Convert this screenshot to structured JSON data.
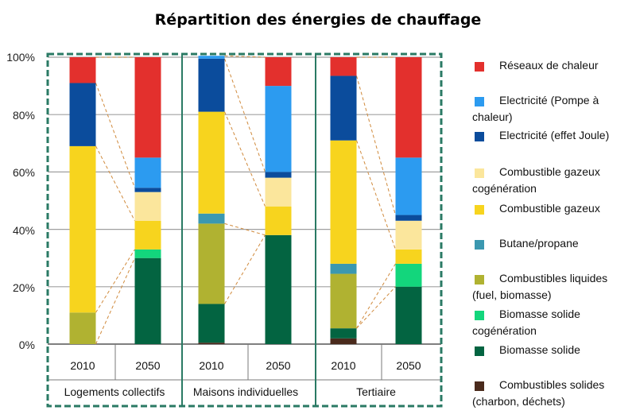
{
  "chart_data": {
    "type": "bar",
    "stacked": true,
    "title": "Répartition des énergies de chauffage",
    "xlabel": "",
    "ylabel": "",
    "ylim": [
      0,
      100
    ],
    "yticks": [
      "0%",
      "20%",
      "40%",
      "60%",
      "80%",
      "100%"
    ],
    "ytick_values": [
      0,
      20,
      40,
      60,
      80,
      100
    ],
    "groups": [
      {
        "name": "Logements collectifs",
        "categories": [
          "2010",
          "2050"
        ]
      },
      {
        "name": "Maisons individuelles",
        "categories": [
          "2010",
          "2050"
        ]
      },
      {
        "name": "Tertiaire",
        "categories": [
          "2010",
          "2050"
        ]
      }
    ],
    "categories": [
      "2010",
      "2050",
      "2010",
      "2050",
      "2010",
      "2050"
    ],
    "series": [
      {
        "name": "Combustibles solides (charbon, déchets)",
        "color": "#4a2a1c",
        "values": [
          0,
          0,
          0.5,
          0,
          2,
          0
        ]
      },
      {
        "name": "Biomasse solide",
        "color": "#036441",
        "values": [
          0,
          30,
          13.5,
          38,
          3.5,
          20
        ]
      },
      {
        "name": "Biomasse solide cogénération",
        "color": "#13d67c",
        "values": [
          0,
          3,
          0,
          0,
          0,
          8
        ]
      },
      {
        "name": "Combustibles liquides (fuel, biomasse)",
        "color": "#b0b231",
        "values": [
          11,
          0,
          28,
          0,
          19,
          0
        ]
      },
      {
        "name": "Butane/propane",
        "color": "#3b98b0",
        "values": [
          0,
          0,
          3.5,
          0,
          3.5,
          0
        ]
      },
      {
        "name": "Combustible gazeux",
        "color": "#f7d41e",
        "values": [
          58,
          10,
          35.5,
          10,
          43,
          5
        ]
      },
      {
        "name": "Combustible gazeux cogénération",
        "color": "#fbe69c",
        "values": [
          0,
          10,
          0,
          10,
          0,
          10
        ]
      },
      {
        "name": "Electricité (effet Joule)",
        "color": "#0b4c9c",
        "values": [
          22,
          1.5,
          18.5,
          2,
          22.5,
          2
        ]
      },
      {
        "name": "Electricité (Pompe à chaleur)",
        "color": "#2c9bf0",
        "values": [
          0,
          10.5,
          1,
          30,
          0,
          20
        ]
      },
      {
        "name": "Réseaux de chaleur",
        "color": "#e3302d",
        "values": [
          9,
          35,
          0,
          10,
          6.5,
          35
        ]
      }
    ],
    "legend": [
      "Réseaux de chaleur",
      "Electricité (Pompe à chaleur)",
      "Electricité (effet Joule)",
      "Combustible gazeux cogénération",
      "Combustible gazeux",
      "Butane/propane",
      "Combustibles liquides (fuel, biomasse)",
      "Biomasse solide cogénération",
      "Biomasse solide",
      "Combustibles solides (charbon, déchets)"
    ],
    "legend_colors": [
      "#e3302d",
      "#2c9bf0",
      "#0b4c9c",
      "#fbe69c",
      "#f7d41e",
      "#3b98b0",
      "#b0b231",
      "#13d67c",
      "#036441",
      "#4a2a1c"
    ],
    "legend_position": "right",
    "connectors": true,
    "grid": true,
    "colors": {
      "frame": "#2a7a64",
      "grid": "#a0a0a0",
      "connector": "#d08a3c"
    }
  }
}
